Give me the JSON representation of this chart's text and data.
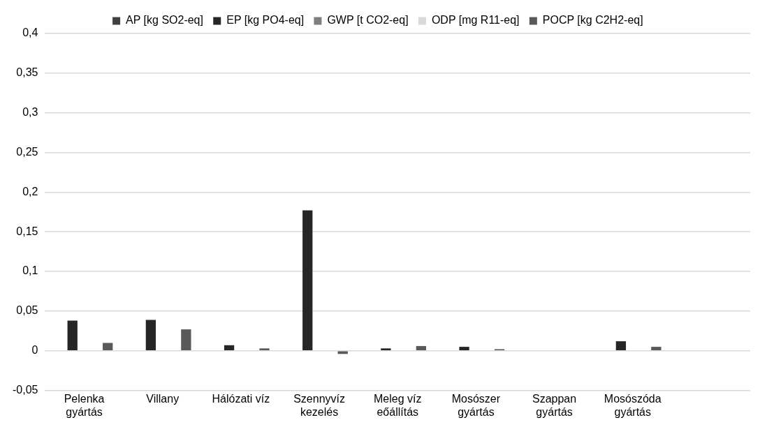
{
  "chart_data": {
    "type": "bar",
    "categories": [
      "Pelenka gyártás",
      "Villany",
      "Hálózati víz",
      "Szennyvíz kezelés",
      "Meleg víz eőállítás",
      "Mosószer gyártás",
      "Szappan gyártás",
      "Mosószóda gyártás",
      null
    ],
    "series": [
      {
        "name": "AP [kg SO2-eq]",
        "color": "#404040",
        "values": [
          0,
          0,
          0,
          0,
          0,
          0,
          0,
          0,
          0
        ]
      },
      {
        "name": "EP [kg PO4-eq]",
        "color": "#262626",
        "values": [
          0.038,
          0.039,
          0.007,
          0.177,
          0.003,
          0.005,
          0,
          0.012,
          0
        ]
      },
      {
        "name": "GWP [t CO2-eq]",
        "color": "#7f7f7f",
        "values": [
          0,
          0,
          0,
          0,
          0,
          0,
          0,
          0,
          0
        ]
      },
      {
        "name": "ODP [mg R11-eq]",
        "color": "#d9d9d9",
        "values": [
          0,
          0,
          0,
          0,
          0,
          0,
          0,
          0,
          0
        ]
      },
      {
        "name": "POCP [kg C2H2-eq]",
        "color": "#595959",
        "values": [
          0.01,
          0.027,
          0.003,
          -0.004,
          0.006,
          0.002,
          0,
          0.005,
          0
        ]
      }
    ],
    "ylim": [
      -0.05,
      0.4
    ],
    "yticks": [
      {
        "value": -0.05,
        "label": "-0,05"
      },
      {
        "value": 0,
        "label": "0"
      },
      {
        "value": 0.05,
        "label": "0,05"
      },
      {
        "value": 0.1,
        "label": "0,1"
      },
      {
        "value": 0.15,
        "label": "0,15"
      },
      {
        "value": 0.2,
        "label": "0,2"
      },
      {
        "value": 0.25,
        "label": "0,25"
      },
      {
        "value": 0.3,
        "label": "0,3"
      },
      {
        "value": 0.35,
        "label": "0,35"
      },
      {
        "value": 0.4,
        "label": "0,4"
      }
    ],
    "grid": "y",
    "legend": "top"
  }
}
